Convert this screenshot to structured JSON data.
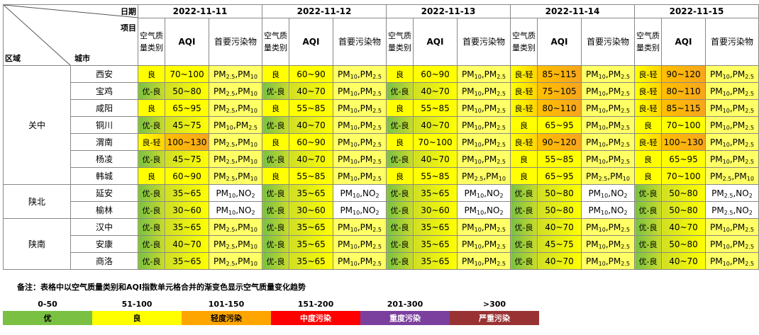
{
  "header": {
    "date_label": "日期",
    "item_label": "项目",
    "region_label": "区域",
    "city_label": "城市",
    "dates": [
      "2022-11-11",
      "2022-11-12",
      "2022-11-13",
      "2022-11-14",
      "2022-11-15"
    ],
    "sub_headers": [
      "空气质量类别",
      "AQI",
      "首要污染物"
    ]
  },
  "regions": [
    {
      "name": "关中",
      "cities": [
        {
          "name": "西安",
          "days": [
            [
              "良",
              "70~100",
              "PM2.5,PM10"
            ],
            [
              "良",
              "60~90",
              "PM10,PM2.5"
            ],
            [
              "良",
              "60~90",
              "PM10,PM2.5"
            ],
            [
              "良-轻",
              "85~115",
              "PM10,PM2.5"
            ],
            [
              "良-轻",
              "90~120",
              "PM10,PM2.5"
            ]
          ]
        },
        {
          "name": "宝鸡",
          "days": [
            [
              "优-良",
              "50~80",
              "PM2.5,PM10"
            ],
            [
              "优-良",
              "40~70",
              "PM10,PM2.5"
            ],
            [
              "优-良",
              "40~70",
              "PM10,PM2.5"
            ],
            [
              "良-轻",
              "75~105",
              "PM10,PM2.5"
            ],
            [
              "良-轻",
              "80~110",
              "PM10,PM2.5"
            ]
          ]
        },
        {
          "name": "咸阳",
          "days": [
            [
              "良",
              "65~95",
              "PM2.5,PM10"
            ],
            [
              "良",
              "55~85",
              "PM10,PM2.5"
            ],
            [
              "良",
              "55~85",
              "PM10,PM2.5"
            ],
            [
              "良-轻",
              "80~110",
              "PM10,PM2.5"
            ],
            [
              "良-轻",
              "85~115",
              "PM10,PM2.5"
            ]
          ]
        },
        {
          "name": "铜川",
          "days": [
            [
              "优-良",
              "45~75",
              "PM10,PM2.5"
            ],
            [
              "优-良",
              "40~70",
              "PM10,PM2.5"
            ],
            [
              "优-良",
              "40~70",
              "PM10,PM2.5"
            ],
            [
              "良",
              "65~95",
              "PM10,PM2.5"
            ],
            [
              "良",
              "70~100",
              "PM10,PM2.5"
            ]
          ]
        },
        {
          "name": "渭南",
          "days": [
            [
              "良-轻",
              "100~130",
              "PM2.5,PM10"
            ],
            [
              "良",
              "60~90",
              "PM10,PM2.5"
            ],
            [
              "良",
              "70~100",
              "PM10,PM2.5"
            ],
            [
              "良-轻",
              "90~120",
              "PM10,PM2.5"
            ],
            [
              "良-轻",
              "100~130",
              "PM10,PM2.5"
            ]
          ]
        },
        {
          "name": "杨凌",
          "days": [
            [
              "优-良",
              "45~75",
              "PM2.5,PM10"
            ],
            [
              "优-良",
              "40~70",
              "PM10,PM2.5"
            ],
            [
              "优-良",
              "40~70",
              "PM10,PM2.5"
            ],
            [
              "良",
              "55~85",
              "PM10,PM2.5"
            ],
            [
              "良",
              "65~95",
              "PM10,PM2.5"
            ]
          ]
        },
        {
          "name": "韩城",
          "days": [
            [
              "良",
              "60~90",
              "PM2.5,PM10"
            ],
            [
              "良",
              "55~85",
              "PM10,PM2.5"
            ],
            [
              "良",
              "55~85",
              "PM2.5,PM10"
            ],
            [
              "良",
              "65~95",
              "PM2.5,PM10"
            ],
            [
              "良",
              "70~100",
              "PM2.5,PM10"
            ]
          ]
        }
      ]
    },
    {
      "name": "陕北",
      "cities": [
        {
          "name": "延安",
          "days": [
            [
              "优-良",
              "35~65",
              "PM10,NO2"
            ],
            [
              "优-良",
              "35~65",
              "PM10,NO2"
            ],
            [
              "优-良",
              "35~65",
              "PM10,NO2"
            ],
            [
              "优-良",
              "50~80",
              "PM10,NO2"
            ],
            [
              "优-良",
              "50~80",
              "PM2.5,NO2"
            ]
          ]
        },
        {
          "name": "榆林",
          "days": [
            [
              "优-良",
              "30~60",
              "PM10,NO2"
            ],
            [
              "优-良",
              "30~60",
              "PM10,NO2"
            ],
            [
              "优-良",
              "30~60",
              "PM10,NO2"
            ],
            [
              "优-良",
              "50~80",
              "PM10,NO2"
            ],
            [
              "优-良",
              "50~80",
              "PM2.5,NO2"
            ]
          ]
        }
      ]
    },
    {
      "name": "陕南",
      "cities": [
        {
          "name": "汉中",
          "days": [
            [
              "优-良",
              "35~65",
              "PM2.5,PM10"
            ],
            [
              "优-良",
              "35~65",
              "PM10,PM2.5"
            ],
            [
              "优-良",
              "35~65",
              "PM10,PM2.5"
            ],
            [
              "优-良",
              "40~70",
              "PM10,PM2.5"
            ],
            [
              "优-良",
              "40~70",
              "PM10,PM2.5"
            ]
          ]
        },
        {
          "name": "安康",
          "days": [
            [
              "优-良",
              "40~70",
              "PM2.5,PM10"
            ],
            [
              "优-良",
              "35~65",
              "PM10,PM2.5"
            ],
            [
              "优-良",
              "35~65",
              "PM10,PM2.5"
            ],
            [
              "优-良",
              "45~75",
              "PM10,PM2.5"
            ],
            [
              "优-良",
              "50~80",
              "PM10,PM2.5"
            ]
          ]
        },
        {
          "name": "商洛",
          "days": [
            [
              "优-良",
              "35~65",
              "PM2.5,PM10"
            ],
            [
              "优-良",
              "35~65",
              "PM10,PM2.5"
            ],
            [
              "优-良",
              "35~65",
              "PM10,PM2.5"
            ],
            [
              "优-良",
              "40~70",
              "PM10,PM2.5"
            ],
            [
              "优-良",
              "40~70",
              "PM10,PM2.5"
            ]
          ]
        }
      ]
    }
  ],
  "legend": {
    "note": "备注：表格中以空气质量类别和AQI指数单元格合并的渐变色显示空气质量变化趋势",
    "items": [
      {
        "range": "0-50",
        "level": "优",
        "color": "#7ac143"
      },
      {
        "range": "51-100",
        "level": "良",
        "color": "#ffff00"
      },
      {
        "range": "101-150",
        "level": "轻度污染",
        "color": "#ffa500"
      },
      {
        "range": "151-200",
        "level": "中度污染",
        "color": "#ff0000"
      },
      {
        "range": "201-300",
        "level": "重度污染",
        "color": "#7b3f9e"
      },
      {
        "range": ">300",
        "level": "严重污染",
        "color": "#993333"
      }
    ]
  }
}
